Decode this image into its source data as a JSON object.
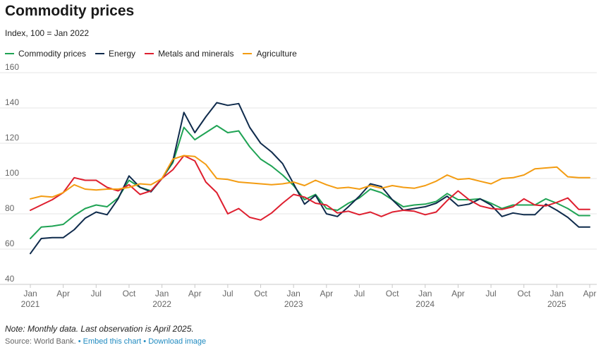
{
  "header": {
    "title": "Commodity prices",
    "subtitle": "Index, 100 = Jan 2022"
  },
  "footer": {
    "note": "Note: Monthly data. Last observation is April 2025.",
    "source": "Source: World Bank.",
    "embed_link": "Embed this chart",
    "download_link": "Download image",
    "separator": "•"
  },
  "chart_data": {
    "type": "line",
    "title": "Commodity prices",
    "subtitle": "Index, 100 = Jan 2022",
    "xlabel": "",
    "ylabel": "",
    "ylim": [
      40,
      160
    ],
    "yticks": [
      40,
      60,
      80,
      100,
      120,
      140,
      160
    ],
    "grid": true,
    "legend_position": "top-left",
    "x": [
      "2021-01",
      "2021-02",
      "2021-03",
      "2021-04",
      "2021-05",
      "2021-06",
      "2021-07",
      "2021-08",
      "2021-09",
      "2021-10",
      "2021-11",
      "2021-12",
      "2022-01",
      "2022-02",
      "2022-03",
      "2022-04",
      "2022-05",
      "2022-06",
      "2022-07",
      "2022-08",
      "2022-09",
      "2022-10",
      "2022-11",
      "2022-12",
      "2023-01",
      "2023-02",
      "2023-03",
      "2023-04",
      "2023-05",
      "2023-06",
      "2023-07",
      "2023-08",
      "2023-09",
      "2023-10",
      "2023-11",
      "2023-12",
      "2024-01",
      "2024-02",
      "2024-03",
      "2024-04",
      "2024-05",
      "2024-06",
      "2024-07",
      "2024-08",
      "2024-09",
      "2024-10",
      "2024-11",
      "2024-12",
      "2025-01",
      "2025-02",
      "2025-03",
      "2025-04"
    ],
    "x_tick_labels": [
      {
        "month": "Jan",
        "year": "2021"
      },
      {
        "month": "Apr",
        "year": ""
      },
      {
        "month": "Jul",
        "year": ""
      },
      {
        "month": "Oct",
        "year": ""
      },
      {
        "month": "Jan",
        "year": "2022"
      },
      {
        "month": "Apr",
        "year": ""
      },
      {
        "month": "Jul",
        "year": ""
      },
      {
        "month": "Oct",
        "year": ""
      },
      {
        "month": "Jan",
        "year": "2023"
      },
      {
        "month": "Apr",
        "year": ""
      },
      {
        "month": "Jul",
        "year": ""
      },
      {
        "month": "Oct",
        "year": ""
      },
      {
        "month": "Jan",
        "year": "2024"
      },
      {
        "month": "Apr",
        "year": ""
      },
      {
        "month": "Jul",
        "year": ""
      },
      {
        "month": "Oct",
        "year": ""
      },
      {
        "month": "Jan",
        "year": "2025"
      },
      {
        "month": "Apr",
        "year": ""
      }
    ],
    "series": [
      {
        "name": "Commodity prices",
        "color": "#1fa354",
        "values": [
          66,
          72.5,
          73,
          74,
          79,
          83,
          85,
          84,
          89,
          99,
          95,
          93,
          100,
          109,
          129,
          122,
          126,
          130,
          126,
          127,
          118,
          111,
          107,
          102,
          96,
          88,
          91,
          83,
          82,
          86,
          89,
          94,
          92,
          88,
          84,
          85,
          85.5,
          87,
          91.5,
          88,
          88,
          88.5,
          86,
          83,
          85,
          85,
          85,
          88.5,
          86,
          83,
          79,
          79
        ]
      },
      {
        "name": "Energy",
        "color": "#0f2b4c",
        "values": [
          57.5,
          66,
          66.5,
          66.5,
          71,
          77.5,
          81,
          79.5,
          88.5,
          101.5,
          95,
          92.5,
          100,
          110,
          137.5,
          126,
          135,
          143,
          141.5,
          142.5,
          129,
          120,
          115,
          108.5,
          97,
          85.5,
          90.5,
          80,
          78.5,
          84,
          90,
          97,
          95.5,
          88,
          82,
          83,
          84,
          86,
          90,
          84.5,
          85.5,
          88.5,
          85,
          78.5,
          80.5,
          79.5,
          79.5,
          85.5,
          82,
          78,
          72.5,
          72.5
        ]
      },
      {
        "name": "Metals and minerals",
        "color": "#de1f2f",
        "values": [
          82,
          85,
          88,
          92,
          100.5,
          99,
          99,
          95,
          93,
          96.5,
          91,
          93,
          100,
          105,
          113,
          110,
          98,
          92,
          80,
          83,
          78,
          76.5,
          80.5,
          86,
          91,
          89.5,
          86,
          85,
          80.5,
          81.5,
          79.5,
          81,
          78.5,
          81,
          82,
          81.5,
          79.5,
          81,
          87.5,
          93,
          88,
          84.5,
          83,
          82.5,
          84,
          88.5,
          85,
          84.5,
          86.5,
          89,
          82.5,
          82.5
        ]
      },
      {
        "name": "Agriculture",
        "color": "#f39c12",
        "values": [
          88.5,
          90,
          89.5,
          92,
          96.5,
          94,
          93.5,
          94,
          94,
          95,
          97,
          96.5,
          100,
          111,
          113,
          112.5,
          108,
          100,
          99.5,
          98,
          97.5,
          97,
          96.5,
          97,
          98,
          96,
          99,
          96.5,
          94.5,
          95,
          94,
          96,
          94.5,
          96,
          95,
          94.5,
          96,
          98.5,
          102,
          99.5,
          100,
          98.5,
          97,
          100,
          100.5,
          102,
          105.5,
          106,
          106.5,
          101,
          100.5,
          100.5
        ]
      }
    ]
  }
}
